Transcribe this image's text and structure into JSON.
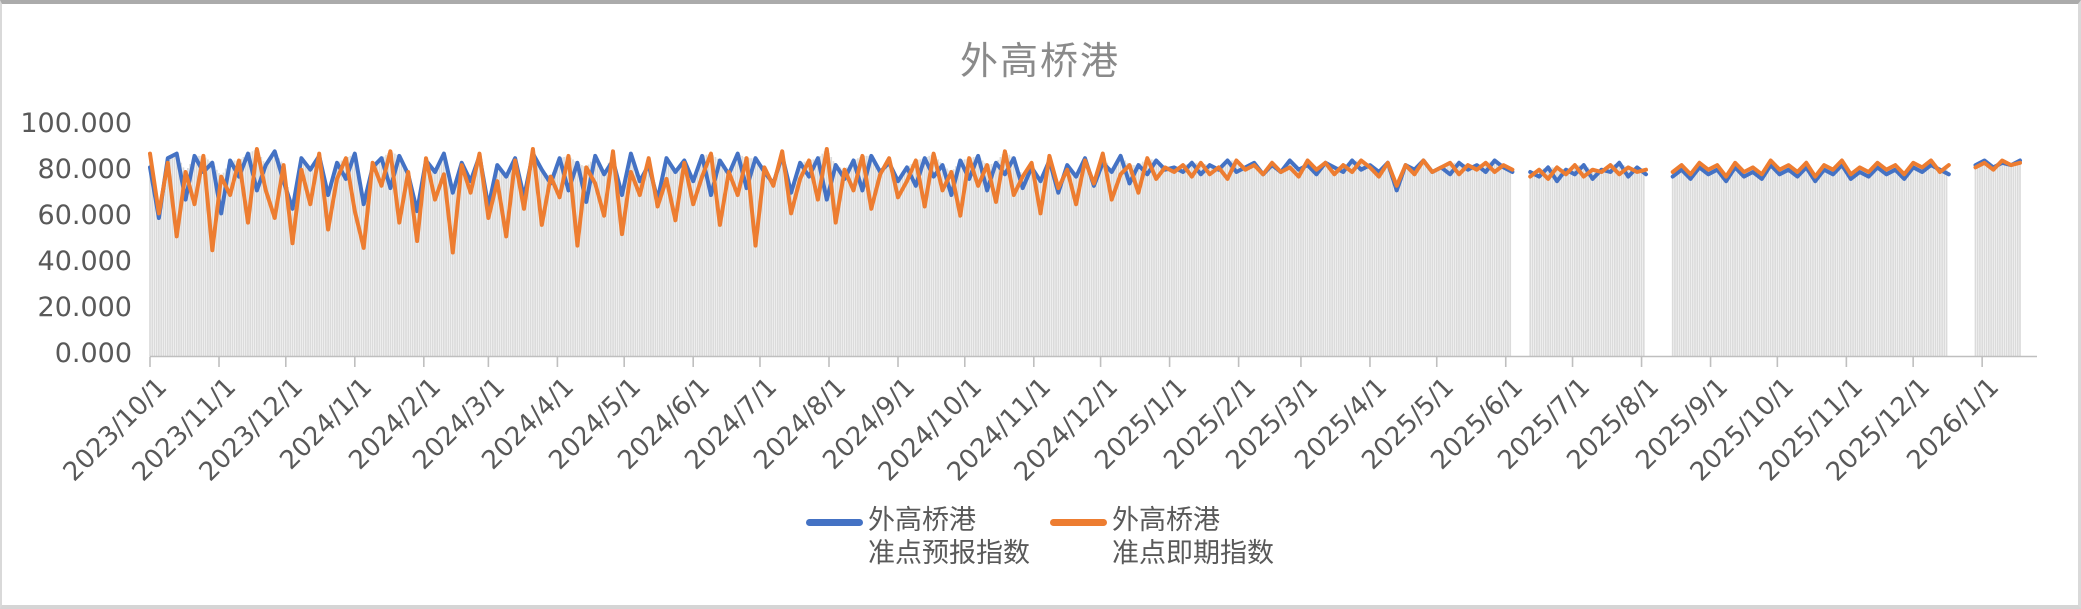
{
  "title": "外高桥港",
  "colors": {
    "forecast_line": "#4472C4",
    "spot_line": "#ED7D31",
    "columns": "#DBDBDB",
    "axis": "#BFBFBF",
    "tick_text": "#595959",
    "title_text": "#8A8A8A"
  },
  "chart_data": {
    "type": "line",
    "title": "外高桥港",
    "xlabel": "",
    "ylabel": "",
    "ylim": [
      0,
      100
    ],
    "grid": false,
    "y_tick_labels": [
      "100.000",
      "80.000",
      "60.000",
      "40.000",
      "20.000",
      "0.000"
    ],
    "x_tick_labels": [
      "2023/10/1",
      "2023/11/1",
      "2023/12/1",
      "2024/1/1",
      "2024/2/1",
      "2024/3/1",
      "2024/4/1",
      "2024/5/1",
      "2024/6/1",
      "2024/7/1",
      "2024/8/1",
      "2024/9/1",
      "2024/10/1",
      "2024/11/1",
      "2024/12/1",
      "2025/1/1",
      "2025/2/1",
      "2025/3/1",
      "2025/4/1",
      "2025/5/1",
      "2025/6/1",
      "2025/7/1",
      "2025/8/1",
      "2025/9/1",
      "2025/10/1",
      "2025/11/1",
      "2025/12/1",
      "2026/1/1"
    ],
    "x_tick_days": [
      0,
      31,
      61,
      92,
      123,
      152,
      183,
      213,
      244,
      274,
      305,
      336,
      366,
      397,
      427,
      458,
      489,
      517,
      548,
      578,
      609,
      639,
      670,
      701,
      731,
      762,
      792,
      823
    ],
    "start_date": "2023/10/1",
    "sample_step_days": 4,
    "total_days": 840,
    "data_gaps": [
      {
        "around": "2025/6/8",
        "from_day": 612,
        "to_day": 620
      },
      {
        "around": "2025/8/8",
        "from_day": 672,
        "to_day": 684
      },
      {
        "around": "2025/12/26",
        "from_day": 808,
        "to_day": 820
      }
    ],
    "legend_position": "bottom-center",
    "legend": [
      {
        "name": "外高桥港 准点预报指数",
        "line1": "外高桥港",
        "line2": "准点预报指数",
        "color": "#4472C4"
      },
      {
        "name": "外高桥港 准点即期指数",
        "line1": "外高桥港",
        "line2": "准点即期指数",
        "color": "#ED7D31"
      }
    ],
    "columns": {
      "description": "light gray daily columns rising from 0 and tracking the upper envelope of the two line series",
      "color": "#DBDBDB"
    },
    "series": [
      {
        "name": "外高桥港 准点预报指数",
        "color": "#4472C4",
        "values": [
          82,
          60,
          86,
          88,
          68,
          87,
          80,
          84,
          62,
          85,
          78,
          88,
          72,
          83,
          89,
          76,
          64,
          86,
          81,
          87,
          70,
          84,
          77,
          88,
          66,
          82,
          86,
          73,
          87,
          79,
          63,
          85,
          80,
          88,
          71,
          84,
          76,
          87,
          65,
          83,
          78,
          86,
          69,
          88,
          81,
          75,
          86,
          72,
          84,
          67,
          87,
          79,
          85,
          70,
          88,
          76,
          83,
          68,
          86,
          80,
          85,
          76,
          87,
          70,
          85,
          79,
          88,
          73,
          86,
          80,
          75,
          87,
          71,
          84,
          78,
          86,
          68,
          83,
          77,
          85,
          72,
          87,
          80,
          84,
          76,
          82,
          74,
          86,
          78,
          83,
          70,
          85,
          77,
          87,
          72,
          84,
          79,
          86,
          73,
          82,
          76,
          85,
          71,
          83,
          78,
          86,
          74,
          84,
          80,
          87,
          75,
          83,
          79,
          85,
          81,
          82,
          80,
          84,
          79,
          83,
          81,
          85,
          80,
          82,
          84,
          79,
          83,
          80,
          85,
          81,
          83,
          79,
          84,
          82,
          80,
          85,
          81,
          83,
          80,
          84,
          72,
          83,
          81,
          85,
          80,
          82,
          79,
          84,
          81,
          83,
          80,
          85,
          82,
          80,
          null,
          80,
          78,
          82,
          76,
          81,
          79,
          83,
          77,
          81,
          80,
          84,
          78,
          82,
          79,
          null,
          null,
          78,
          81,
          77,
          82,
          79,
          81,
          76,
          82,
          78,
          80,
          77,
          83,
          79,
          81,
          78,
          82,
          76,
          81,
          79,
          83,
          77,
          80,
          78,
          82,
          79,
          81,
          77,
          82,
          80,
          83,
          81,
          79,
          null,
          null,
          83,
          85,
          82,
          84,
          83,
          85
        ]
      },
      {
        "name": "外高桥港 准点即期指数",
        "color": "#ED7D31",
        "values": [
          88,
          62,
          84,
          52,
          80,
          66,
          87,
          46,
          78,
          70,
          85,
          58,
          90,
          72,
          60,
          83,
          49,
          81,
          66,
          88,
          55,
          77,
          86,
          63,
          47,
          84,
          74,
          89,
          58,
          80,
          50,
          86,
          68,
          79,
          45,
          83,
          71,
          88,
          60,
          76,
          52,
          85,
          64,
          90,
          57,
          78,
          69,
          87,
          48,
          82,
          75,
          61,
          89,
          53,
          80,
          70,
          86,
          65,
          77,
          59,
          84,
          66,
          78,
          88,
          57,
          80,
          70,
          86,
          48,
          82,
          74,
          89,
          62,
          77,
          85,
          68,
          90,
          58,
          81,
          72,
          87,
          64,
          79,
          86,
          69,
          76,
          85,
          65,
          88,
          72,
          80,
          61,
          86,
          74,
          83,
          67,
          89,
          70,
          78,
          84,
          62,
          87,
          73,
          81,
          66,
          85,
          75,
          88,
          68,
          79,
          83,
          71,
          86,
          77,
          82,
          80,
          83,
          78,
          84,
          79,
          82,
          77,
          85,
          81,
          83,
          79,
          84,
          80,
          82,
          78,
          85,
          81,
          84,
          79,
          83,
          80,
          85,
          82,
          78,
          84,
          74,
          83,
          79,
          85,
          80,
          82,
          84,
          79,
          83,
          81,
          84,
          80,
          83,
          81,
          null,
          78,
          81,
          77,
          82,
          79,
          83,
          78,
          81,
          80,
          83,
          79,
          82,
          80,
          81,
          null,
          null,
          80,
          83,
          79,
          84,
          81,
          83,
          78,
          84,
          80,
          82,
          79,
          85,
          81,
          83,
          80,
          84,
          78,
          83,
          81,
          85,
          79,
          82,
          80,
          84,
          81,
          83,
          79,
          84,
          82,
          85,
          80,
          83,
          null,
          null,
          82,
          84,
          81,
          85,
          83,
          84
        ]
      }
    ]
  }
}
